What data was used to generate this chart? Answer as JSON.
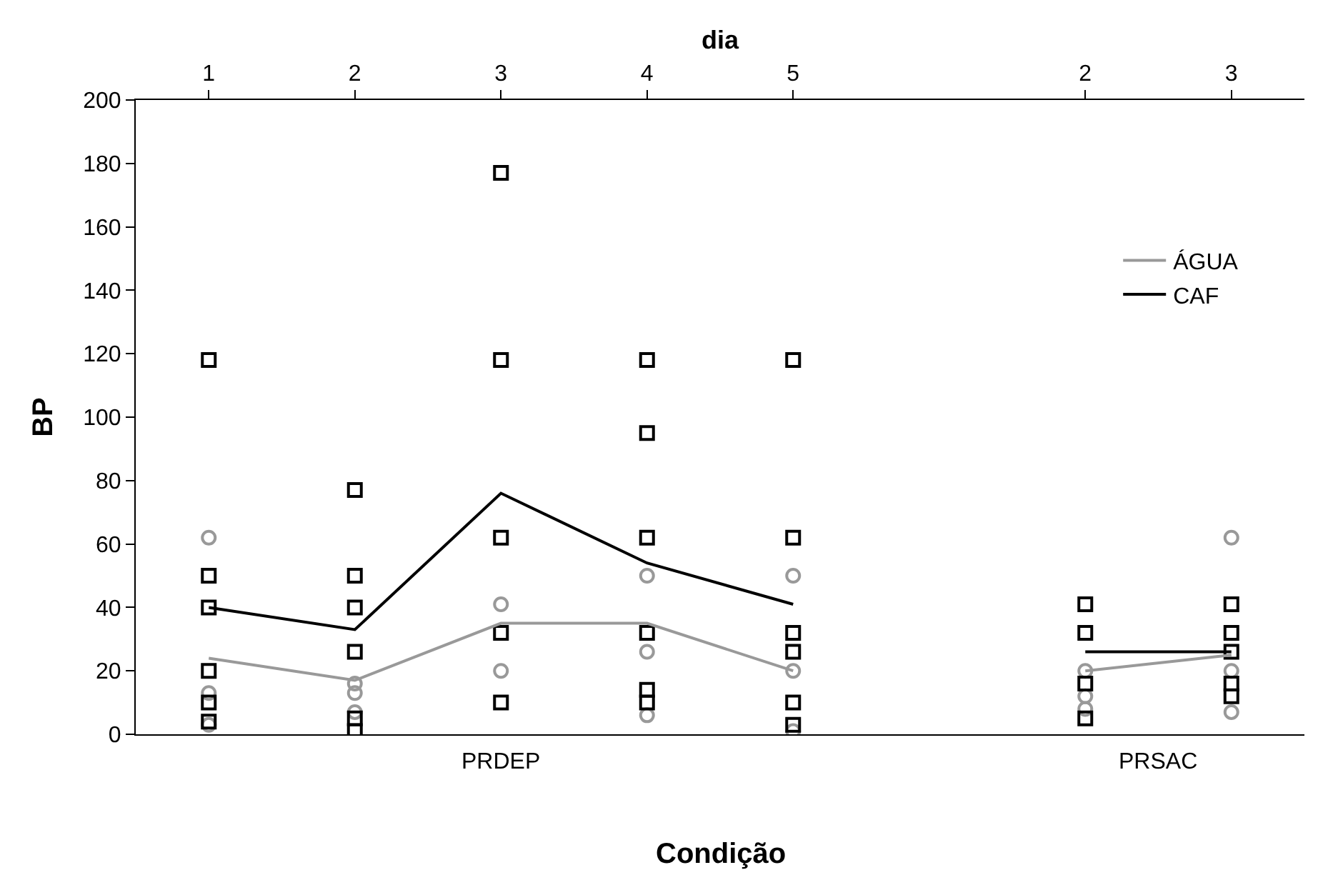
{
  "chart_data": {
    "type": "scatter",
    "xlabel": "dia",
    "ylabel": "BP",
    "annotations": [
      "PRDEP",
      "PRSAC",
      "Condição"
    ],
    "categories": [
      "1",
      "2",
      "3",
      "4",
      "5",
      null,
      "2",
      "3"
    ],
    "ylim": [
      0,
      200
    ],
    "yticks": [
      0,
      20,
      40,
      60,
      80,
      100,
      120,
      140,
      160,
      180,
      200
    ],
    "legend": "right",
    "series": [
      {
        "marker": "circle",
        "color": "#999999",
        "values": [
          62,
          16,
          41,
          50,
          50,
          null,
          20,
          62
        ]
      },
      {
        "marker": "circle",
        "color": "#999999",
        "values": [
          13,
          13,
          20,
          26,
          20,
          null,
          12,
          20
        ]
      },
      {
        "marker": "circle",
        "color": "#999999",
        "values": [
          3,
          7,
          null,
          6,
          1,
          null,
          8,
          7
        ]
      },
      {
        "marker": "square",
        "color": "#000000",
        "values": [
          118,
          77,
          177,
          118,
          118,
          null,
          41,
          41
        ]
      },
      {
        "marker": "square",
        "color": "#000000",
        "values": [
          50,
          50,
          118,
          95,
          62,
          null,
          32,
          32
        ]
      },
      {
        "marker": "square",
        "color": "#000000",
        "values": [
          40,
          40,
          62,
          62,
          32,
          null,
          16,
          26
        ]
      },
      {
        "marker": "square",
        "color": "#000000",
        "values": [
          20,
          26,
          32,
          32,
          26,
          null,
          5,
          16
        ]
      },
      {
        "marker": "square",
        "color": "#000000",
        "values": [
          10,
          5,
          10,
          14,
          10,
          null,
          null,
          12
        ]
      },
      {
        "marker": "square",
        "color": "#000000",
        "values": [
          4,
          1,
          null,
          10,
          3,
          null,
          null,
          null
        ]
      },
      {
        "type": "line",
        "name": "ÁGUA",
        "color": "#999999",
        "marker": "none",
        "values": [
          24,
          17,
          35,
          35,
          20,
          null,
          20,
          25
        ]
      },
      {
        "type": "line",
        "name": "CAF",
        "color": "#000000",
        "marker": "none",
        "values": [
          40,
          33,
          76,
          54,
          41,
          null,
          26,
          26
        ]
      }
    ]
  }
}
